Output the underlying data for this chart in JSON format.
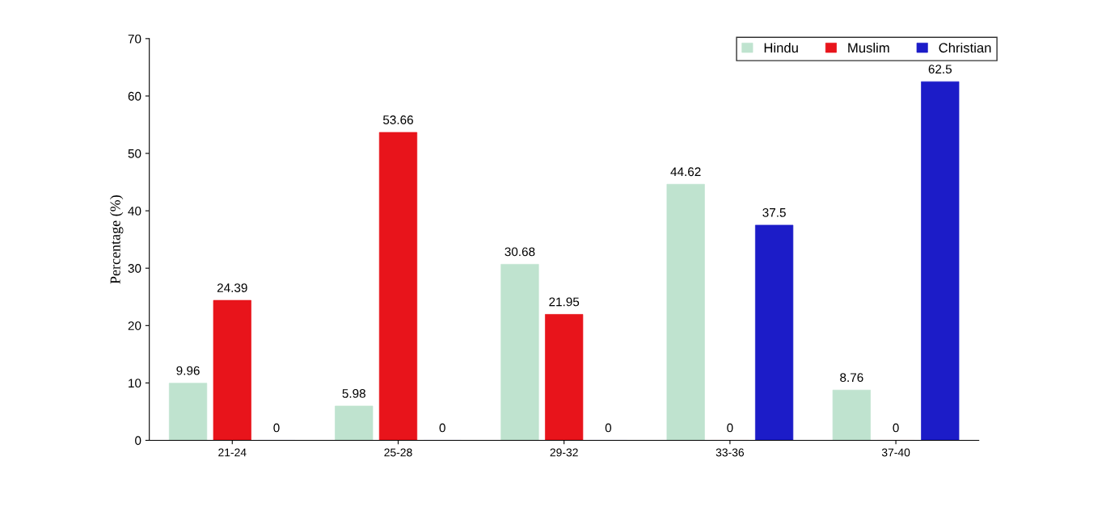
{
  "chart_data": {
    "type": "bar",
    "ylabel": "Percentage (%)",
    "categories": [
      "21-24",
      "25-28",
      "29-32",
      "33-36",
      "37-40"
    ],
    "series": [
      {
        "name": "Hindu",
        "color": "#bfe3cf",
        "values": [
          9.96,
          5.98,
          30.68,
          44.62,
          8.76
        ]
      },
      {
        "name": "Muslim",
        "color": "#e8141b",
        "values": [
          24.39,
          53.66,
          21.95,
          0,
          0
        ]
      },
      {
        "name": "Christian",
        "color": "#1c1cc8",
        "values": [
          0,
          0,
          0,
          37.5,
          62.5
        ]
      }
    ],
    "ylim": [
      0,
      70
    ],
    "yticks": [
      0,
      10,
      20,
      30,
      40,
      50,
      60,
      70
    ],
    "grid": false,
    "legend": "top right",
    "data_labels": true
  }
}
